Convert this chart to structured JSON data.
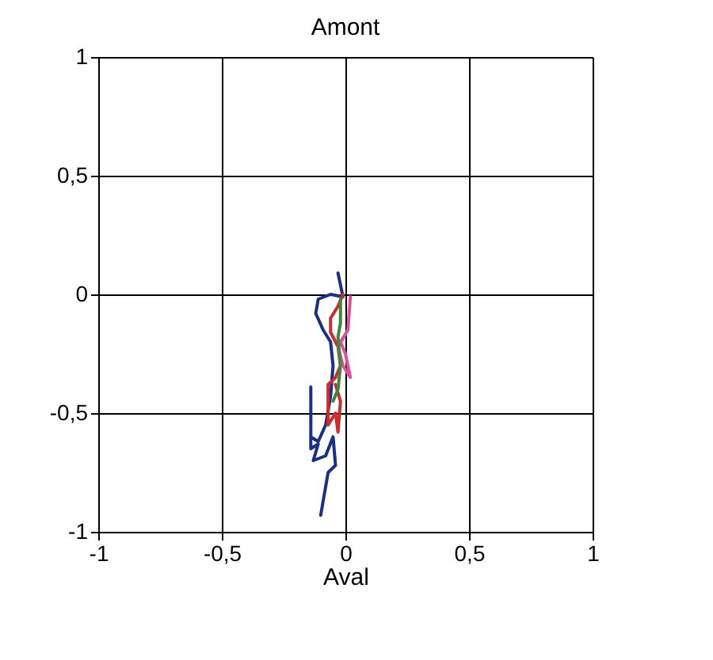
{
  "chart_data": {
    "type": "line",
    "title": "Amont",
    "xlabel": "Aval",
    "xlim": [
      -1,
      1
    ],
    "ylim": [
      -1,
      1
    ],
    "xticks": [
      -1,
      {
        "value": -0.5,
        "label": "-0,5"
      },
      0,
      {
        "value": 0.5,
        "label": "0,5"
      },
      1
    ],
    "yticks": [
      -1,
      {
        "value": -0.5,
        "label": "-0,5"
      },
      0,
      {
        "value": 0.5,
        "label": "0,5"
      },
      1
    ],
    "grid": true,
    "legend": false,
    "marker": "none",
    "line_style": "solid",
    "series": [
      {
        "color": "#1a2f8a",
        "x": [
          -0.03,
          -0.01,
          -0.06,
          -0.11,
          -0.12,
          -0.09,
          -0.06,
          -0.05,
          -0.06,
          -0.08,
          -0.11,
          -0.14,
          -0.14,
          -0.14,
          -0.11,
          -0.13,
          -0.08,
          -0.05,
          -0.04,
          -0.07,
          -0.1
        ],
        "values": [
          0.09,
          -0.01,
          0.0,
          -0.02,
          -0.08,
          -0.15,
          -0.2,
          -0.3,
          -0.43,
          -0.55,
          -0.62,
          -0.6,
          -0.39,
          -0.65,
          -0.63,
          -0.7,
          -0.68,
          -0.6,
          -0.72,
          -0.75,
          -0.93
        ]
      },
      {
        "color": "#d02a2a",
        "x": [
          -0.01,
          -0.03,
          -0.06,
          -0.06,
          -0.03,
          -0.02,
          -0.04,
          -0.07,
          -0.07,
          -0.04,
          -0.03,
          -0.02,
          -0.04
        ],
        "values": [
          0.0,
          -0.05,
          -0.1,
          -0.16,
          -0.22,
          -0.3,
          -0.35,
          -0.38,
          -0.55,
          -0.5,
          -0.58,
          -0.45,
          -0.38
        ]
      },
      {
        "color": "#e0509a",
        "x": [
          0.02,
          0.01,
          -0.02,
          0.0,
          0.02,
          -0.01,
          -0.03,
          0.0
        ],
        "values": [
          -0.01,
          -0.15,
          -0.2,
          -0.25,
          -0.35,
          -0.3,
          -0.22,
          -0.17
        ]
      },
      {
        "color": "#3a8a3a",
        "x": [
          -0.02,
          -0.02,
          -0.03,
          -0.02,
          -0.03,
          -0.05
        ],
        "values": [
          -0.02,
          -0.12,
          -0.18,
          -0.3,
          -0.4,
          -0.45
        ]
      }
    ]
  }
}
